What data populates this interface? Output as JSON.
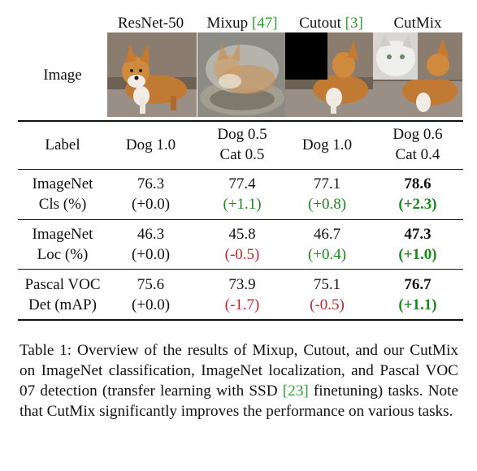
{
  "header": {
    "methods": [
      "ResNet-50",
      "Mixup",
      "Cutout",
      "CutMix"
    ],
    "mixup_ref": "[47]",
    "cutout_ref": "[3]",
    "image_label": "Image"
  },
  "images": [
    {
      "name": "corgi-original",
      "desc": "dog"
    },
    {
      "name": "corgi-mixup",
      "desc": "dog+cat blend"
    },
    {
      "name": "corgi-cutout",
      "desc": "dog with black patch"
    },
    {
      "name": "corgi-cutmix",
      "desc": "dog with cat patch"
    }
  ],
  "rows": [
    {
      "label": [
        "Label"
      ],
      "cells": [
        [
          "Dog 1.0"
        ],
        [
          "Dog 0.5",
          "Cat 0.5"
        ],
        [
          "Dog 1.0"
        ],
        [
          "Dog 0.6",
          "Cat 0.4"
        ]
      ]
    },
    {
      "label": [
        "ImageNet",
        "Cls (%)"
      ],
      "values": [
        "76.3",
        "77.4",
        "77.1",
        "78.6"
      ],
      "deltas": [
        "(+0.0)",
        "(+1.1)",
        "(+0.8)",
        "(+2.3)"
      ]
    },
    {
      "label": [
        "ImageNet",
        "Loc (%)"
      ],
      "values": [
        "46.3",
        "45.8",
        "46.7",
        "47.3"
      ],
      "deltas": [
        "(+0.0)",
        "(-0.5)",
        "(+0.4)",
        "(+1.0)"
      ]
    },
    {
      "label": [
        "Pascal VOC",
        "Det (mAP)"
      ],
      "values": [
        "75.6",
        "73.9",
        "75.1",
        "76.7"
      ],
      "deltas": [
        "(+0.0)",
        "(-1.7)",
        "(-0.5)",
        "(+1.1)"
      ]
    }
  ],
  "colors": {
    "positive": "#1a8a1a",
    "negative": "#d21f2a",
    "reference": "#2aa52a"
  },
  "caption": {
    "prefix": "Table 1: Overview of the results of Mixup, Cutout, and our CutMix on ImageNet classification, ImageNet localization, and Pascal VOC 07 detection (transfer learning with SSD ",
    "ref": "[23]",
    "suffix": " finetuning) tasks. Note that CutMix significantly improves the performance on various tasks."
  }
}
